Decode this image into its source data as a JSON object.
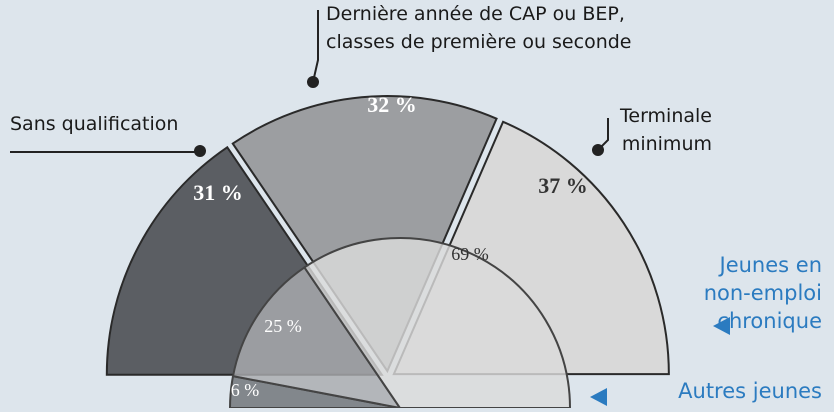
{
  "chart_data": [
    {
      "type": "pie",
      "half": true,
      "name": [
        "Jeunes en",
        "non-emploi",
        "chronique"
      ],
      "categories": [
        [
          "Sans qualification"
        ],
        [
          "Dernière année de CAP ou BEP,",
          "classes de première ou seconde"
        ],
        [
          "Terminale",
          "minimum"
        ]
      ],
      "values": [
        31,
        32,
        37
      ],
      "value_labels": [
        "31 %",
        "32 %",
        "37 %"
      ],
      "colors": [
        "#5b5e63",
        "#9c9ea1",
        "#d9d9d9"
      ]
    },
    {
      "type": "pie",
      "half": true,
      "name": [
        "Autres jeunes"
      ],
      "values": [
        6,
        25,
        69
      ],
      "value_labels": [
        "6 %",
        "25 %",
        "69 %"
      ],
      "colors": [
        "#6e7176",
        "#a9abae",
        "#dadada"
      ]
    }
  ]
}
